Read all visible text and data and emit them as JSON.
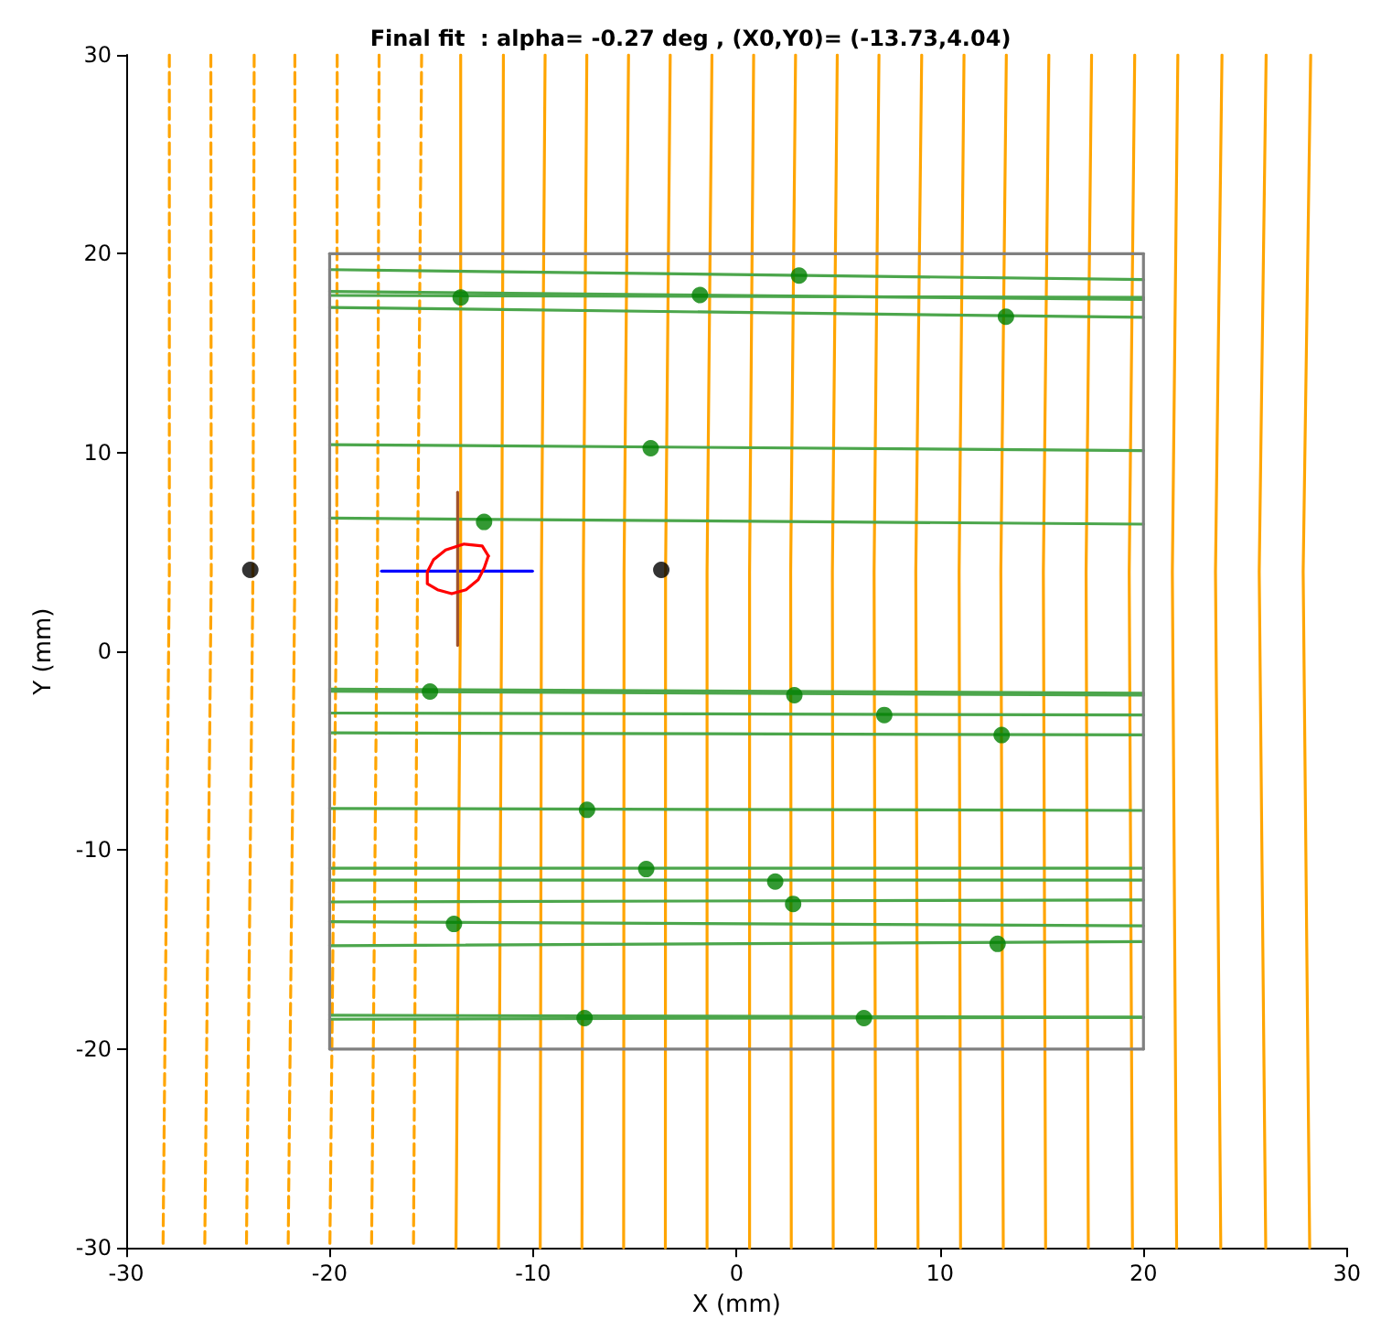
{
  "chart_data": {
    "type": "line",
    "title": "Final fit  : alpha= -0.27 deg , (X0,Y0)= (-13.73,4.04)",
    "xlabel": "X (mm)",
    "ylabel": "Y (mm)",
    "xlim": [
      -30,
      30
    ],
    "ylim": [
      -30,
      30
    ],
    "xticks": [
      -30,
      -20,
      -10,
      0,
      10,
      20,
      30
    ],
    "yticks": [
      -30,
      -20,
      -10,
      0,
      10,
      20,
      30
    ],
    "grid": false,
    "marker": "none",
    "line_style": "solid",
    "series": [
      {
        "color": "#ffa500",
        "line_style": "dashed",
        "x": [
          -27.88,
          -27.88,
          -28.19
        ],
        "values": [
          30,
          4,
          -30
        ]
      },
      {
        "color": "#ffa500",
        "line_style": "dashed",
        "x": [
          -25.84,
          -25.82,
          -26.14
        ],
        "values": [
          30,
          4,
          -30
        ]
      },
      {
        "color": "#ffa500",
        "line_style": "dashed",
        "x": [
          -23.71,
          -23.77,
          -24.09
        ],
        "values": [
          30,
          4,
          -30
        ]
      },
      {
        "color": "#ffa500",
        "line_style": "dashed",
        "x": [
          -21.71,
          -21.71,
          -22.04
        ],
        "values": [
          30,
          4,
          -30
        ]
      },
      {
        "color": "#ffa500",
        "line_style": "dashed",
        "x": [
          -19.63,
          -19.65,
          -19.99
        ],
        "values": [
          30,
          4,
          -30
        ]
      },
      {
        "color": "#ffa500",
        "line_style": "dashed",
        "x": [
          -17.57,
          -17.65,
          -17.94
        ],
        "values": [
          30,
          4,
          -30
        ]
      },
      {
        "color": "#ffa500",
        "line_style": "dashed",
        "x": [
          -15.48,
          -15.68,
          -15.88
        ],
        "values": [
          30,
          4,
          -30
        ]
      },
      {
        "color": "#ffa500",
        "x": [
          -13.56,
          -13.56,
          -13.79
        ],
        "values": [
          30,
          4,
          -30
        ]
      },
      {
        "color": "#ffa500",
        "x": [
          -11.46,
          -11.54,
          -11.7
        ],
        "values": [
          30,
          4,
          -30
        ]
      },
      {
        "color": "#ffa500",
        "x": [
          -9.41,
          -9.59,
          -9.65
        ],
        "values": [
          30,
          4,
          -30
        ]
      },
      {
        "color": "#ffa500",
        "x": [
          -7.36,
          -7.53,
          -7.6
        ],
        "values": [
          30,
          4,
          -30
        ]
      },
      {
        "color": "#ffa500",
        "x": [
          -5.31,
          -5.53,
          -5.55
        ],
        "values": [
          30,
          4,
          -30
        ]
      },
      {
        "color": "#ffa500",
        "x": [
          -3.26,
          -3.49,
          -3.5
        ],
        "values": [
          30,
          4,
          -30
        ]
      },
      {
        "color": "#ffa500",
        "x": [
          -1.21,
          -1.45,
          -1.45
        ],
        "values": [
          30,
          4,
          -30
        ]
      },
      {
        "color": "#ffa500",
        "x": [
          0.84,
          0.64,
          0.64
        ],
        "values": [
          30,
          4,
          -30
        ]
      },
      {
        "color": "#ffa500",
        "x": [
          2.9,
          2.66,
          2.69
        ],
        "values": [
          30,
          4,
          -30
        ]
      },
      {
        "color": "#ffa500",
        "x": [
          4.95,
          4.71,
          4.75
        ],
        "values": [
          30,
          4,
          -30
        ]
      },
      {
        "color": "#ffa500",
        "x": [
          7.0,
          6.76,
          6.84
        ],
        "values": [
          30,
          4,
          -30
        ]
      },
      {
        "color": "#ffa500",
        "x": [
          9.1,
          8.81,
          8.92
        ],
        "values": [
          30,
          4,
          -30
        ]
      },
      {
        "color": "#ffa500",
        "x": [
          11.18,
          10.94,
          11.01
        ],
        "values": [
          30,
          4,
          -30
        ]
      },
      {
        "color": "#ffa500",
        "x": [
          13.26,
          12.99,
          13.11
        ],
        "values": [
          30,
          4,
          -30
        ]
      },
      {
        "color": "#ffa500",
        "x": [
          15.35,
          15.08,
          15.19
        ],
        "values": [
          30,
          4,
          -30
        ]
      },
      {
        "color": "#ffa500",
        "x": [
          17.45,
          17.18,
          17.29
        ],
        "values": [
          30,
          4,
          -30
        ]
      },
      {
        "color": "#ffa500",
        "x": [
          19.57,
          19.3,
          19.46
        ],
        "values": [
          30,
          4,
          -30
        ]
      },
      {
        "color": "#ffa500",
        "x": [
          21.69,
          21.42,
          21.63
        ],
        "values": [
          30,
          4,
          -30
        ]
      },
      {
        "color": "#ffa500",
        "x": [
          23.86,
          23.54,
          23.8
        ],
        "values": [
          30,
          4,
          -30
        ]
      },
      {
        "color": "#ffa500",
        "x": [
          26.03,
          25.69,
          26.01
        ],
        "values": [
          30,
          4,
          -30
        ]
      },
      {
        "color": "#ffa500",
        "x": [
          28.22,
          27.85,
          28.17
        ],
        "values": [
          30,
          4,
          -30
        ]
      },
      {
        "color": "#4ca64c",
        "x": [
          -20,
          20
        ],
        "values": [
          19.2,
          18.7
        ]
      },
      {
        "color": "#4ca64c",
        "x": [
          -20,
          20
        ],
        "values": [
          18.1,
          17.7
        ]
      },
      {
        "color": "#4ca64c",
        "x": [
          -20,
          20
        ],
        "values": [
          17.9,
          17.8
        ]
      },
      {
        "color": "#4ca64c",
        "x": [
          -20,
          20
        ],
        "values": [
          17.3,
          16.8
        ]
      },
      {
        "color": "#4ca64c",
        "x": [
          -20,
          20
        ],
        "values": [
          10.4,
          10.1
        ]
      },
      {
        "color": "#4ca64c",
        "x": [
          -20,
          20
        ],
        "values": [
          6.7,
          6.4
        ]
      },
      {
        "color": "#4ca64c",
        "x": [
          -20,
          20
        ],
        "values": [
          -1.9,
          -2.1
        ]
      },
      {
        "color": "#4ca64c",
        "x": [
          -20,
          20
        ],
        "values": [
          -2.0,
          -2.2
        ]
      },
      {
        "color": "#4ca64c",
        "x": [
          -20,
          20
        ],
        "values": [
          -3.1,
          -3.2
        ]
      },
      {
        "color": "#4ca64c",
        "x": [
          -20,
          20
        ],
        "values": [
          -4.1,
          -4.2
        ]
      },
      {
        "color": "#4ca64c",
        "x": [
          -20,
          20
        ],
        "values": [
          -7.9,
          -8.0
        ]
      },
      {
        "color": "#4ca64c",
        "x": [
          -20,
          20
        ],
        "values": [
          -10.9,
          -10.9
        ]
      },
      {
        "color": "#4ca64c",
        "x": [
          -20,
          20
        ],
        "values": [
          -11.5,
          -11.5
        ]
      },
      {
        "color": "#4ca64c",
        "x": [
          -20,
          20
        ],
        "values": [
          -12.6,
          -12.5
        ]
      },
      {
        "color": "#4ca64c",
        "x": [
          -20,
          20
        ],
        "values": [
          -13.6,
          -13.8
        ]
      },
      {
        "color": "#4ca64c",
        "x": [
          -20,
          20
        ],
        "values": [
          -14.8,
          -14.6
        ]
      },
      {
        "color": "#4ca64c",
        "x": [
          -20,
          20
        ],
        "values": [
          -18.3,
          -18.4
        ]
      },
      {
        "color": "#4ca64c",
        "x": [
          -20,
          20
        ],
        "values": [
          -18.5,
          -18.4
        ]
      },
      {
        "color": "#0000ff",
        "x": [
          -17.45,
          -10.03
        ],
        "values": [
          4.04,
          4.04
        ]
      },
      {
        "color": "#a0522d",
        "x": [
          -13.71,
          -13.71
        ],
        "values": [
          8.0,
          0.3
        ]
      },
      {
        "color": "#ff0000",
        "x": [
          -15.2,
          -14.9,
          -14.3,
          -13.4,
          -12.5,
          -12.2
        ],
        "values": [
          4.0,
          4.6,
          5.1,
          5.4,
          5.3,
          4.8
        ]
      },
      {
        "color": "#ff0000",
        "x": [
          -15.2,
          -15.2,
          -14.7,
          -14.0,
          -13.3,
          -12.7,
          -12.4,
          -12.2
        ],
        "values": [
          4.0,
          3.4,
          3.1,
          2.9,
          3.1,
          3.6,
          4.2,
          4.8
        ]
      },
      {
        "type": "scatter",
        "marker": "circle",
        "color": "#008000",
        "x": [
          -13.56,
          -1.8,
          3.07,
          13.24,
          -4.22,
          -12.41,
          -15.07,
          2.84,
          7.26,
          13.03,
          -7.35,
          -4.44,
          1.9,
          2.78,
          -13.89,
          12.83,
          -7.47,
          6.26
        ],
        "values": [
          17.8,
          17.92,
          18.9,
          16.83,
          10.22,
          6.51,
          -2.02,
          -2.2,
          -3.2,
          -4.21,
          -7.97,
          -10.95,
          -11.58,
          -12.7,
          -13.71,
          -14.71,
          -18.44,
          -18.44
        ]
      },
      {
        "type": "scatter",
        "marker": "circle",
        "color": "#000000",
        "x": [
          -23.9,
          -3.7
        ],
        "values": [
          4.1,
          4.1
        ]
      },
      {
        "color": "#808080",
        "x": [
          -20,
          20
        ],
        "values": [
          20,
          20
        ]
      },
      {
        "color": "#808080",
        "x": [
          20,
          20
        ],
        "values": [
          20,
          -20
        ]
      },
      {
        "color": "#808080",
        "x": [
          -20,
          20
        ],
        "values": [
          -20,
          -20
        ]
      },
      {
        "color": "#808080",
        "x": [
          -20,
          -20
        ],
        "values": [
          20,
          -20
        ]
      }
    ]
  }
}
